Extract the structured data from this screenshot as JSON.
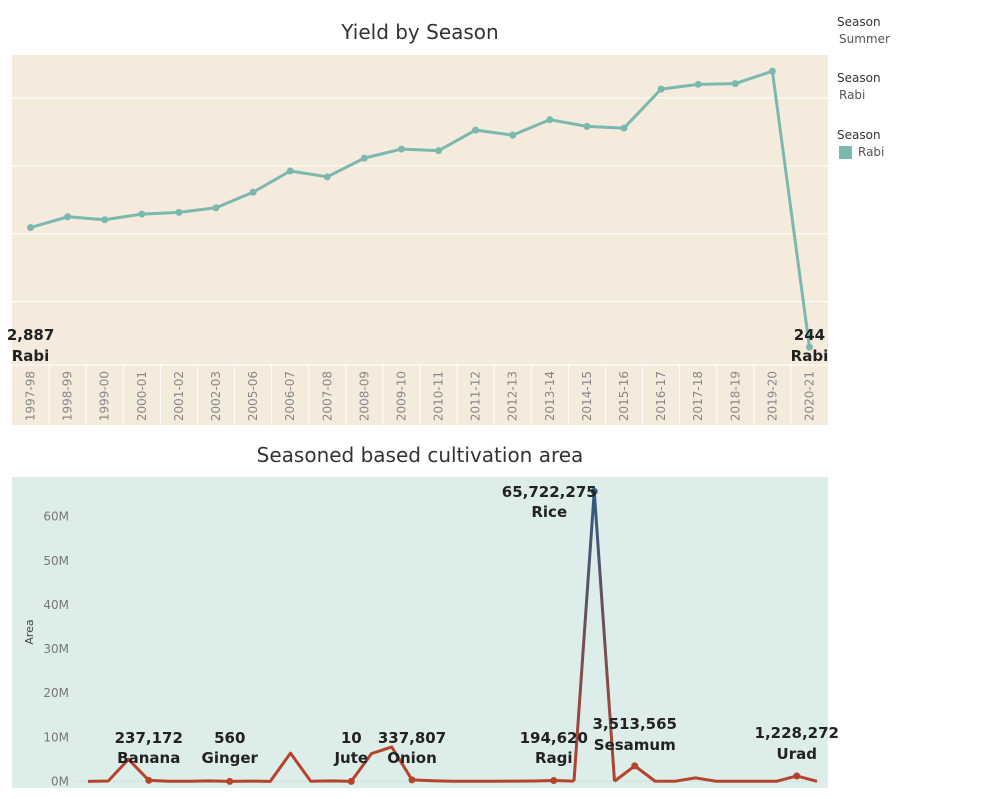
{
  "charts": {
    "yield": {
      "title": "Yield by Season",
      "bg_color": "#f5ebdc",
      "line_color": "#7ab8b0",
      "label_color": "#222222"
    },
    "area": {
      "title": "Seasoned based cultivation area",
      "bg_color": "#ddedea",
      "line_color": "#b5442b",
      "peak_color": "#2f5a84",
      "ylabel": "Area"
    }
  },
  "legend": [
    {
      "header": "Season",
      "value": "Summer",
      "swatch": false
    },
    {
      "header": "Season",
      "value": "Rabi",
      "swatch": false
    },
    {
      "header": "Season",
      "value": "Rabi",
      "swatch": true,
      "color": "#7ab8b0"
    }
  ],
  "chart_data": [
    {
      "type": "line",
      "title": "Yield by Season",
      "xlabel": "",
      "ylabel": "",
      "x": [
        "1997-98",
        "1998-99",
        "1999-00",
        "2000-01",
        "2001-02",
        "2002-03",
        "2005-06",
        "2006-07",
        "2007-08",
        "2008-09",
        "2009-10",
        "2010-11",
        "2011-12",
        "2012-13",
        "2013-14",
        "2014-15",
        "2015-16",
        "2016-17",
        "2017-18",
        "2018-19",
        "2019-20",
        "2020-21"
      ],
      "values": [
        2887,
        3125,
        3060,
        3185,
        3223,
        3325,
        3668,
        4137,
        4008,
        4421,
        4621,
        4586,
        5040,
        4929,
        5271,
        5123,
        5085,
        5946,
        6052,
        6068,
        6342,
        244
      ],
      "ylim": [
        -150,
        6700
      ],
      "y_gridlines": [
        1250,
        2750,
        4250,
        5750
      ],
      "y_tick_labels_visible": false,
      "grid": true,
      "annotations": [
        {
          "index": 0,
          "value_label": "2,887",
          "season": "Rabi"
        },
        {
          "index": 21,
          "value_label": "244",
          "season": "Rabi"
        }
      ]
    },
    {
      "type": "line",
      "title": "Seasoned based cultivation area",
      "xlabel": "",
      "ylabel": "Area",
      "ylim": [
        -1500000,
        69000000
      ],
      "y_ticks": [
        0,
        10000000,
        20000000,
        30000000,
        40000000,
        50000000,
        60000000
      ],
      "y_tick_labels": [
        "0M",
        "10M",
        "20M",
        "30M",
        "40M",
        "50M",
        "60M"
      ],
      "grid": false,
      "values": [
        10,
        80000,
        5000000,
        237172,
        20000,
        40000,
        120000,
        560,
        70000,
        10,
        6400000,
        40000,
        120000,
        10,
        6300000,
        7800000,
        337807,
        150000,
        20000,
        30000,
        20000,
        60000,
        90000,
        194620,
        60000,
        65722275,
        30000,
        3513565,
        60000,
        40000,
        800000,
        40000,
        30000,
        30000,
        20000,
        1228272,
        20000
      ],
      "annotations": [
        {
          "index": 3,
          "value_label": "237,172",
          "crop": "Banana"
        },
        {
          "index": 7,
          "value_label": "560",
          "crop": "Ginger"
        },
        {
          "index": 13,
          "value_label": "10",
          "crop": "Jute"
        },
        {
          "index": 16,
          "value_label": "337,807",
          "crop": "Onion"
        },
        {
          "index": 23,
          "value_label": "194,620",
          "crop": "Ragi"
        },
        {
          "index": 25,
          "value_label": "65,722,275",
          "crop": "Rice"
        },
        {
          "index": 27,
          "value_label": "3,513,565",
          "crop": "Sesamum"
        },
        {
          "index": 35,
          "value_label": "1,228,272",
          "crop": "Urad"
        }
      ]
    }
  ]
}
